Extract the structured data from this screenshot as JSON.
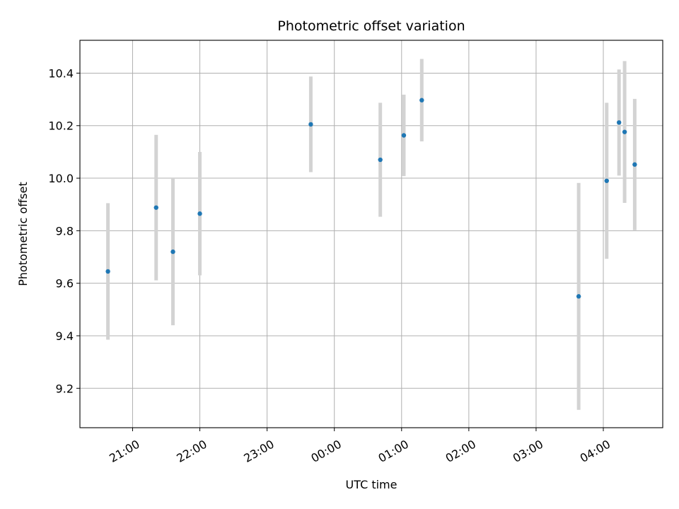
{
  "chart_data": {
    "type": "scatter",
    "title": "Photometric offset variation",
    "xlabel": "UTC time",
    "ylabel": "Photometric offset",
    "x_ticks": [
      "21:00",
      "22:00",
      "23:00",
      "00:00",
      "01:00",
      "02:00",
      "03:00",
      "04:00"
    ],
    "y_ticks": [
      "9.2",
      "9.4",
      "9.6",
      "9.8",
      "10.0",
      "10.2",
      "10.4"
    ],
    "xlim": [
      "20:13",
      "04:53"
    ],
    "ylim": [
      9.05,
      10.525
    ],
    "grid": true,
    "colors": {
      "point": "#1f77b4",
      "errorbar": "#d3d3d3",
      "grid": "#b0b0b0"
    },
    "points": [
      {
        "x": "20:38",
        "y": 9.645,
        "err": 0.26
      },
      {
        "x": "21:21",
        "y": 9.888,
        "err": 0.277
      },
      {
        "x": "21:36",
        "y": 9.72,
        "err": 0.28
      },
      {
        "x": "22:00",
        "y": 9.865,
        "err": 0.235
      },
      {
        "x": "23:39",
        "y": 10.205,
        "err": 0.182
      },
      {
        "x": "00:41",
        "y": 10.07,
        "err": 0.217
      },
      {
        "x": "01:02",
        "y": 10.163,
        "err": 0.155
      },
      {
        "x": "01:18",
        "y": 10.297,
        "err": 0.157
      },
      {
        "x": "03:38",
        "y": 9.55,
        "err": 0.432
      },
      {
        "x": "04:03",
        "y": 9.99,
        "err": 0.297
      },
      {
        "x": "04:14",
        "y": 10.212,
        "err": 0.202
      },
      {
        "x": "04:19",
        "y": 10.176,
        "err": 0.27
      },
      {
        "x": "04:28",
        "y": 10.052,
        "err": 0.25
      }
    ]
  }
}
